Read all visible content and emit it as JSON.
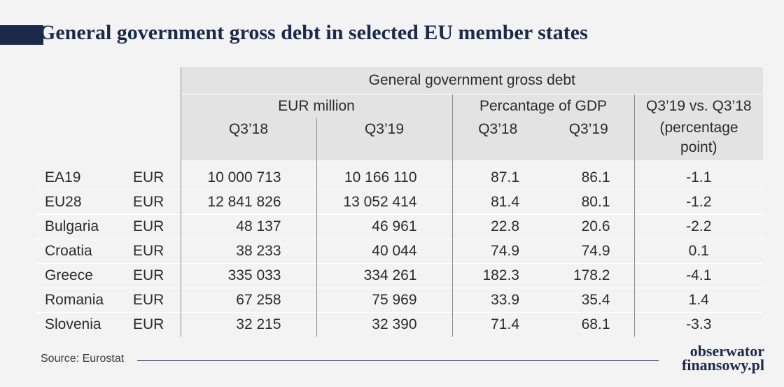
{
  "title": "General government gross debt in selected EU member states",
  "table": {
    "group_header": "General government gross debt",
    "sub_headers": [
      "EUR million",
      "Percantage of GDP",
      "Q3’19 vs. Q3’18"
    ],
    "col_headers": [
      "Q3’18",
      "Q3’19",
      "Q3’18",
      "Q3’19",
      "(percentage point)"
    ],
    "rows": [
      {
        "country": "EA19",
        "unit": "EUR",
        "eur_q318": "10 000 713",
        "eur_q319": "10 166 110",
        "gdp_q318": "87.1",
        "gdp_q319": "86.1",
        "pp": "-1.1"
      },
      {
        "country": "EU28",
        "unit": "EUR",
        "eur_q318": "12 841 826",
        "eur_q319": "13 052 414",
        "gdp_q318": "81.4",
        "gdp_q319": "80.1",
        "pp": "-1.2"
      },
      {
        "country": "Bulgaria",
        "unit": "EUR",
        "eur_q318": "48 137",
        "eur_q319": "46 961",
        "gdp_q318": "22.8",
        "gdp_q319": "20.6",
        "pp": "-2.2"
      },
      {
        "country": "Croatia",
        "unit": "EUR",
        "eur_q318": "38 233",
        "eur_q319": "40 044",
        "gdp_q318": "74.9",
        "gdp_q319": "74.9",
        "pp": "0.1"
      },
      {
        "country": "Greece",
        "unit": "EUR",
        "eur_q318": "335 033",
        "eur_q319": "334 261",
        "gdp_q318": "182.3",
        "gdp_q319": "178.2",
        "pp": "-4.1"
      },
      {
        "country": "Romania",
        "unit": "EUR",
        "eur_q318": "67 258",
        "eur_q319": "75 969",
        "gdp_q318": "33.9",
        "gdp_q319": "35.4",
        "pp": "1.4"
      },
      {
        "country": "Slovenia",
        "unit": "EUR",
        "eur_q318": "32 215",
        "eur_q319": "32 390",
        "gdp_q318": "71.4",
        "gdp_q319": "68.1",
        "pp": "-3.3"
      }
    ]
  },
  "source": "Source: Eurostat",
  "logo": {
    "line1": "obserwator",
    "line2": "finansowy.pl"
  },
  "colors": {
    "navy": "#1b2a4a",
    "header_bg": "#e3e3e3",
    "background": "#f3f3f3"
  },
  "chart_data": {
    "type": "table",
    "title": "General government gross debt in selected EU member states",
    "columns": [
      "",
      "",
      "EUR million Q3’18",
      "EUR million Q3’19",
      "Percantage of GDP Q3’18",
      "Percantage of GDP Q3’19",
      "Q3’19 vs. Q3’18 (percentage point)"
    ],
    "rows": [
      [
        "EA19",
        "EUR",
        10000713,
        10166110,
        87.1,
        86.1,
        -1.1
      ],
      [
        "EU28",
        "EUR",
        12841826,
        13052414,
        81.4,
        80.1,
        -1.2
      ],
      [
        "Bulgaria",
        "EUR",
        48137,
        46961,
        22.8,
        20.6,
        -2.2
      ],
      [
        "Croatia",
        "EUR",
        38233,
        40044,
        74.9,
        74.9,
        0.1
      ],
      [
        "Greece",
        "EUR",
        335033,
        334261,
        182.3,
        178.2,
        -4.1
      ],
      [
        "Romania",
        "EUR",
        67258,
        75969,
        33.9,
        35.4,
        1.4
      ],
      [
        "Slovenia",
        "EUR",
        32215,
        32390,
        71.4,
        68.1,
        -3.3
      ]
    ]
  }
}
